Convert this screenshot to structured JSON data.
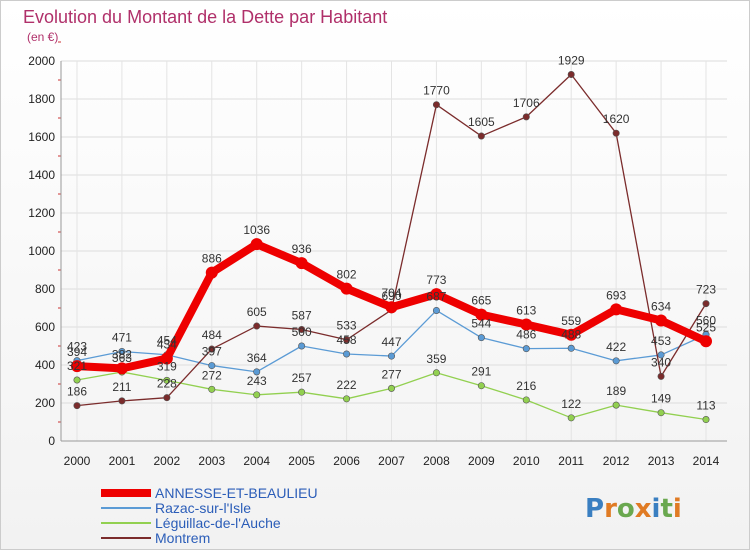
{
  "chart_data": {
    "type": "line",
    "title": "Evolution du Montant de la Dette par Habitant",
    "subtitle": "(en €)",
    "xlabel": "",
    "ylabel": "",
    "categories": [
      "2000",
      "2001",
      "2002",
      "2003",
      "2004",
      "2005",
      "2006",
      "2007",
      "2008",
      "2009",
      "2010",
      "2011",
      "2012",
      "2013",
      "2014"
    ],
    "ylim": [
      0,
      2000
    ],
    "yticks": [
      0,
      200,
      400,
      600,
      800,
      1000,
      1200,
      1400,
      1600,
      1800,
      2000
    ],
    "grid": true,
    "legend_position": "bottom-left",
    "series": [
      {
        "name": "ANNESSE-ET-BEAULIEU",
        "color": "#ee0000",
        "values": [
          394,
          382,
          434,
          886,
          1036,
          936,
          802,
          704,
          773,
          665,
          613,
          559,
          693,
          634,
          525
        ]
      },
      {
        "name": "Razac-sur-l'Isle",
        "color": "#5b9bd5",
        "values": [
          423,
          471,
          454,
          397,
          364,
          500,
          458,
          447,
          687,
          544,
          486,
          488,
          422,
          453,
          560
        ]
      },
      {
        "name": "Léguillac-de-l'Auche",
        "color": "#92d050",
        "values": [
          321,
          363,
          319,
          272,
          243,
          257,
          222,
          277,
          359,
          291,
          216,
          122,
          189,
          149,
          113
        ]
      },
      {
        "name": "Montrem",
        "color": "#7b2c2c",
        "values": [
          186,
          211,
          228,
          484,
          605,
          587,
          533,
          690,
          1770,
          1605,
          1706,
          1929,
          1620,
          340,
          723
        ]
      }
    ]
  },
  "brand": {
    "name": "Proxiti",
    "colors": [
      "#3a7fc1",
      "#e07b24",
      "#6aa84f",
      "#e07b24",
      "#3a7fc1",
      "#6aa84f",
      "#e07b24"
    ]
  }
}
